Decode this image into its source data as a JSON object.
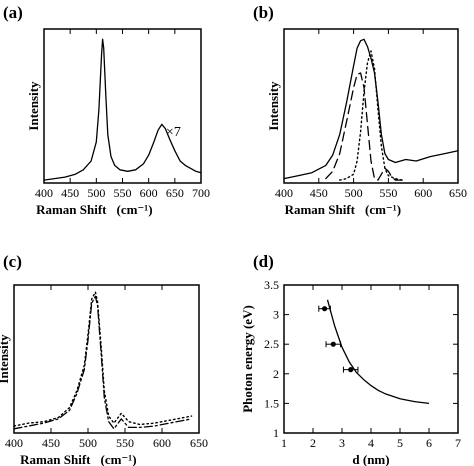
{
  "chart_data": [
    {
      "panel": "(a)",
      "type": "line",
      "xlabel": "Raman Shift",
      "xunit": "(cm⁻¹)",
      "ylabel": "Intensity",
      "xlim": [
        400,
        700
      ],
      "ylim": [
        0,
        1.05
      ],
      "xticks": [
        400,
        450,
        500,
        550,
        600,
        650,
        700
      ],
      "annotation": "×7",
      "series": [
        {
          "style": "solid",
          "x": [
            400,
            420,
            440,
            460,
            475,
            490,
            500,
            505,
            510,
            512,
            514,
            518,
            522,
            528,
            535,
            545,
            560,
            575,
            590,
            600,
            610,
            618,
            625,
            632,
            640,
            650,
            660,
            670,
            680,
            690,
            700
          ],
          "y": [
            0.02,
            0.03,
            0.04,
            0.06,
            0.09,
            0.15,
            0.28,
            0.5,
            0.88,
            0.98,
            0.92,
            0.6,
            0.33,
            0.18,
            0.12,
            0.09,
            0.08,
            0.09,
            0.13,
            0.19,
            0.28,
            0.36,
            0.4,
            0.37,
            0.3,
            0.22,
            0.15,
            0.12,
            0.1,
            0.08,
            0.07
          ]
        }
      ]
    },
    {
      "panel": "(b)",
      "type": "line",
      "xlabel": "Raman Shift",
      "xunit": "(cm⁻¹)",
      "ylabel": "Intensity",
      "xlim": [
        400,
        650
      ],
      "ylim": [
        0,
        1.05
      ],
      "xticks": [
        400,
        450,
        500,
        550,
        600,
        650
      ],
      "series": [
        {
          "style": "solid",
          "x": [
            400,
            420,
            440,
            460,
            470,
            480,
            490,
            500,
            505,
            510,
            515,
            520,
            525,
            530,
            535,
            540,
            545,
            550,
            560,
            575,
            590,
            610,
            630,
            650
          ],
          "y": [
            0.03,
            0.05,
            0.07,
            0.12,
            0.19,
            0.33,
            0.55,
            0.8,
            0.92,
            0.97,
            0.98,
            0.93,
            0.85,
            0.75,
            0.55,
            0.33,
            0.2,
            0.16,
            0.14,
            0.16,
            0.15,
            0.18,
            0.2,
            0.22
          ]
        },
        {
          "style": "dashed",
          "x": [
            460,
            470,
            480,
            490,
            500,
            505,
            510,
            515,
            520,
            525,
            530,
            535,
            540,
            545,
            550,
            555,
            560,
            570
          ],
          "y": [
            0.03,
            0.08,
            0.2,
            0.42,
            0.65,
            0.74,
            0.75,
            0.65,
            0.4,
            0.15,
            0.03,
            0.02,
            0.06,
            0.1,
            0.08,
            0.04,
            0.02,
            0.02
          ]
        },
        {
          "style": "dotted",
          "x": [
            480,
            490,
            500,
            505,
            510,
            515,
            520,
            525,
            530,
            535,
            540,
            545,
            550,
            560,
            570
          ],
          "y": [
            0.02,
            0.03,
            0.06,
            0.15,
            0.35,
            0.62,
            0.82,
            0.9,
            0.78,
            0.5,
            0.25,
            0.1,
            0.05,
            0.03,
            0.02
          ]
        }
      ]
    },
    {
      "panel": "(c)",
      "type": "line",
      "xlabel": "Raman Shift",
      "xunit": "(cm⁻¹)",
      "ylabel": "Intensity",
      "xlim": [
        400,
        650
      ],
      "ylim": [
        0,
        1.05
      ],
      "xticks": [
        400,
        450,
        500,
        550,
        600,
        650
      ],
      "series": [
        {
          "style": "dotted",
          "x": [
            400,
            420,
            440,
            460,
            475,
            485,
            495,
            500,
            505,
            510,
            513,
            518,
            522,
            528,
            535,
            545,
            555,
            570,
            590,
            610,
            630,
            640
          ],
          "y": [
            0.05,
            0.07,
            0.08,
            0.11,
            0.18,
            0.3,
            0.48,
            0.7,
            0.95,
            1.0,
            0.93,
            0.6,
            0.3,
            0.12,
            0.07,
            0.14,
            0.08,
            0.06,
            0.07,
            0.09,
            0.11,
            0.12
          ]
        },
        {
          "style": "dashdot",
          "x": [
            400,
            420,
            440,
            460,
            475,
            485,
            495,
            500,
            505,
            510,
            513,
            518,
            522,
            528,
            535,
            545,
            555,
            570,
            590,
            610,
            630,
            640
          ],
          "y": [
            0.03,
            0.05,
            0.07,
            0.1,
            0.16,
            0.28,
            0.45,
            0.66,
            0.92,
            0.97,
            0.9,
            0.55,
            0.25,
            0.08,
            0.03,
            0.1,
            0.04,
            0.04,
            0.05,
            0.07,
            0.09,
            0.1
          ]
        }
      ]
    },
    {
      "panel": "(d)",
      "type": "scatter",
      "xlabel": "d  (nm)",
      "ylabel": "Photon  energy  (eV)",
      "xlim": [
        1,
        7
      ],
      "ylim": [
        1,
        3.5
      ],
      "xticks": [
        1,
        2,
        3,
        4,
        5,
        6,
        7
      ],
      "yticks": [
        1,
        1.5,
        2,
        2.5,
        3,
        3.5
      ],
      "points": [
        {
          "x": 2.4,
          "y": 3.1,
          "xerr": 0.2
        },
        {
          "x": 2.7,
          "y": 2.5,
          "xerr": 0.25
        },
        {
          "x": 3.3,
          "y": 2.07,
          "xerr": 0.25
        }
      ],
      "fit_curve": {
        "x": [
          2.5,
          2.75,
          3.0,
          3.25,
          3.5,
          3.75,
          4.0,
          4.25,
          4.5,
          5.0,
          5.5,
          6.0
        ],
        "y": [
          3.25,
          2.8,
          2.45,
          2.2,
          2.02,
          1.9,
          1.8,
          1.72,
          1.66,
          1.58,
          1.53,
          1.5
        ]
      }
    }
  ]
}
